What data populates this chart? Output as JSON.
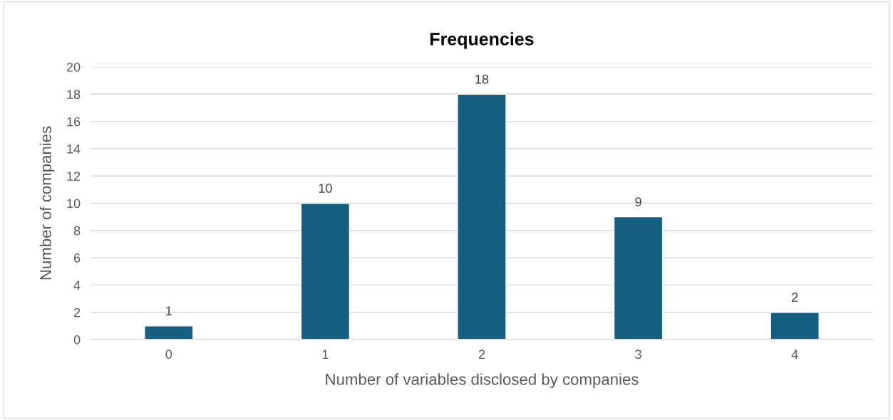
{
  "chart_data": {
    "type": "bar",
    "title": "Frequencies",
    "xlabel": "Number of variables disclosed by companies",
    "ylabel": "Number of companies",
    "categories": [
      "0",
      "1",
      "2",
      "3",
      "4"
    ],
    "values": [
      1,
      10,
      18,
      9,
      2
    ],
    "color": "#156082",
    "ylim": [
      0,
      20
    ],
    "yticks": [
      0,
      2,
      4,
      6,
      8,
      10,
      12,
      14,
      16,
      18,
      20
    ],
    "grid": "y",
    "data_labels": true
  }
}
